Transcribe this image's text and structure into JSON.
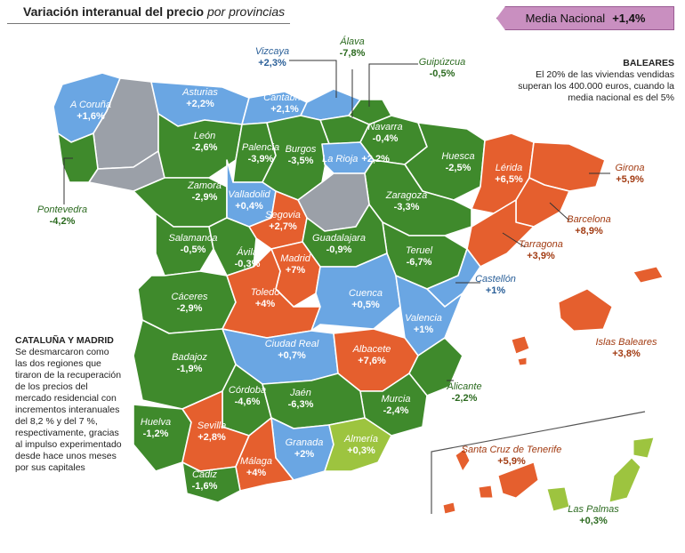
{
  "title": {
    "main": "Variación interanual del precio",
    "italic": "por provincias"
  },
  "media_nacional": {
    "label": "Media Nacional",
    "value": "+1,4%"
  },
  "colors": {
    "green": "#3f8a2c",
    "orange": "#e55f2e",
    "blue": "#6aa6e3",
    "grey": "#9ba0a8",
    "lime": "#9dc43f",
    "purple": "#c98fc0"
  },
  "notes": {
    "baleares": {
      "heading": "BALEARES",
      "lines": [
        "El 20% de las viviendas vendidas",
        "superan los 400.000 euros, cuando la",
        "media nacional es del 5%"
      ]
    },
    "cataluna": {
      "heading": "CATALUÑA Y MADRID",
      "lines": [
        "Se desmarcaron como",
        "las dos regiones que",
        "tiraron de la recuperación",
        "de los precios del",
        "mercado residencial con",
        "incrementos interanuales",
        "del 8,2 % y del 7 %,",
        "respectivamente, gracias",
        "al impulso experimentado",
        "desde hace unos meses",
        "por sus capitales"
      ]
    }
  },
  "provinces": [
    {
      "name": "A Coruña",
      "value": "+1,6%",
      "status": "blue"
    },
    {
      "name": "Asturias",
      "value": "+2,2%",
      "status": "blue"
    },
    {
      "name": "Cantabria",
      "value": "+2,1%",
      "status": "blue"
    },
    {
      "name": "Vizcaya",
      "value": "+2,3%",
      "status": "blue"
    },
    {
      "name": "Álava",
      "value": "-7,8%",
      "status": "green"
    },
    {
      "name": "Guipúzcua",
      "value": "-0,5%",
      "status": "green"
    },
    {
      "name": "Navarra",
      "value": "-0,4%",
      "status": "green"
    },
    {
      "name": "León",
      "value": "-2,6%",
      "status": "green"
    },
    {
      "name": "Palencia",
      "value": "-3,9%",
      "status": "green"
    },
    {
      "name": "Burgos",
      "value": "-3,5%",
      "status": "green"
    },
    {
      "name": "La Rioja",
      "value": "+2,2%",
      "status": "blue"
    },
    {
      "name": "Huesca",
      "value": "-2,5%",
      "status": "green"
    },
    {
      "name": "Lérida",
      "value": "+6,5%",
      "status": "orange"
    },
    {
      "name": "Girona",
      "value": "+5,9%",
      "status": "orange"
    },
    {
      "name": "Pontevedra",
      "value": "-4,2%",
      "status": "green"
    },
    {
      "name": "Zamora",
      "value": "-2,9%",
      "status": "green"
    },
    {
      "name": "Valladolid",
      "value": "+0,4%",
      "status": "blue"
    },
    {
      "name": "Zaragoza",
      "value": "-3,3%",
      "status": "green"
    },
    {
      "name": "Barcelona",
      "value": "+8,9%",
      "status": "orange"
    },
    {
      "name": "Segovia",
      "value": "+2,7%",
      "status": "orange"
    },
    {
      "name": "Salamanca",
      "value": "-0,5%",
      "status": "green"
    },
    {
      "name": "Ávila",
      "value": "-0,3%",
      "status": "green"
    },
    {
      "name": "Guadalajara",
      "value": "-0,9%",
      "status": "green"
    },
    {
      "name": "Tarragona",
      "value": "+3,9%",
      "status": "orange"
    },
    {
      "name": "Teruel",
      "value": "-6,7%",
      "status": "green"
    },
    {
      "name": "Madrid",
      "value": "+7%",
      "status": "orange"
    },
    {
      "name": "Castellón",
      "value": "+1%",
      "status": "blue"
    },
    {
      "name": "Cáceres",
      "value": "-2,9%",
      "status": "green"
    },
    {
      "name": "Toledo",
      "value": "+4%",
      "status": "orange"
    },
    {
      "name": "Cuenca",
      "value": "+0,5%",
      "status": "blue"
    },
    {
      "name": "Valencia",
      "value": "+1%",
      "status": "blue"
    },
    {
      "name": "Ciudad Real",
      "value": "+0,7%",
      "status": "blue"
    },
    {
      "name": "Albacete",
      "value": "+7,6%",
      "status": "orange"
    },
    {
      "name": "Islas Baleares",
      "value": "+3,8%",
      "status": "orange"
    },
    {
      "name": "Badajoz",
      "value": "-1,9%",
      "status": "green"
    },
    {
      "name": "Córdoba",
      "value": "-4,6%",
      "status": "green"
    },
    {
      "name": "Jaén",
      "value": "-6,3%",
      "status": "green"
    },
    {
      "name": "Murcia",
      "value": "-2,4%",
      "status": "green"
    },
    {
      "name": "Alicante",
      "value": "-2,2%",
      "status": "green"
    },
    {
      "name": "Huelva",
      "value": "-1,2%",
      "status": "green"
    },
    {
      "name": "Sevilla",
      "value": "+2,8%",
      "status": "orange"
    },
    {
      "name": "Granada",
      "value": "+2%",
      "status": "blue"
    },
    {
      "name": "Almería",
      "value": "+0,3%",
      "status": "lime"
    },
    {
      "name": "Santa Cruz de Tenerife",
      "value": "+5,9%",
      "status": "orange"
    },
    {
      "name": "Málaga",
      "value": "+4%",
      "status": "orange"
    },
    {
      "name": "Cádiz",
      "value": "-1,6%",
      "status": "green"
    },
    {
      "name": "Las Palmas",
      "value": "+0,3%",
      "status": "lime"
    }
  ]
}
